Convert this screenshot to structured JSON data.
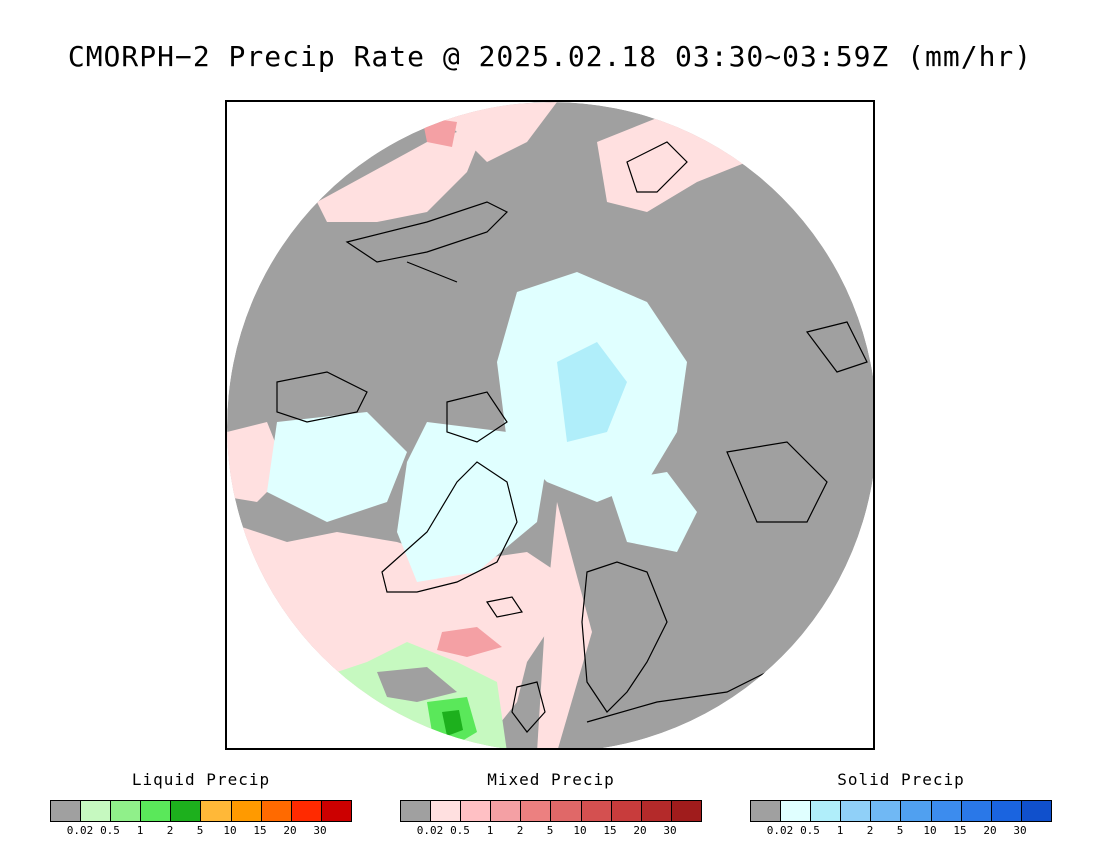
{
  "title": "CMORPH−2 Precip Rate @ 2025.02.18 03:30~03:59Z (mm/hr)",
  "legends": [
    {
      "title": "Liquid Precip",
      "colors": [
        "#a0a0a0",
        "#c6f9c0",
        "#90f08a",
        "#5ae85a",
        "#1db01d",
        "#ffb838",
        "#ff9a00",
        "#ff6a00",
        "#ff2a00",
        "#cc0000"
      ],
      "ticks": [
        "0.02",
        "0.5",
        "1",
        "2",
        "5",
        "10",
        "15",
        "20",
        "30"
      ]
    },
    {
      "title": "Mixed Precip",
      "colors": [
        "#a0a0a0",
        "#ffe0e0",
        "#ffc0c4",
        "#f4a0a4",
        "#ec8080",
        "#e06868",
        "#d45050",
        "#c83c3c",
        "#b42a2a",
        "#a01c1c"
      ],
      "ticks": [
        "0.02",
        "0.5",
        "1",
        "2",
        "5",
        "10",
        "15",
        "20",
        "30"
      ]
    },
    {
      "title": "Solid Precip",
      "colors": [
        "#a0a0a0",
        "#e0ffff",
        "#b0eefa",
        "#90d0f8",
        "#70b8f4",
        "#50a0f0",
        "#3c8cee",
        "#2a78e8",
        "#1a64e0",
        "#1050cc"
      ],
      "ticks": [
        "0.02",
        "0.5",
        "1",
        "2",
        "5",
        "10",
        "15",
        "20",
        "30"
      ]
    }
  ],
  "map_colors": {
    "no_precip": "#a0a0a0",
    "light_mixed": "#ffe0e0",
    "mixed": "#f4a0a4",
    "light_solid": "#e0ffff",
    "solid": "#b0eefa",
    "light_liquid": "#c6f9c0",
    "liquid": "#5ae85a",
    "heavy_liquid": "#1db01d",
    "coastline": "#000000"
  }
}
